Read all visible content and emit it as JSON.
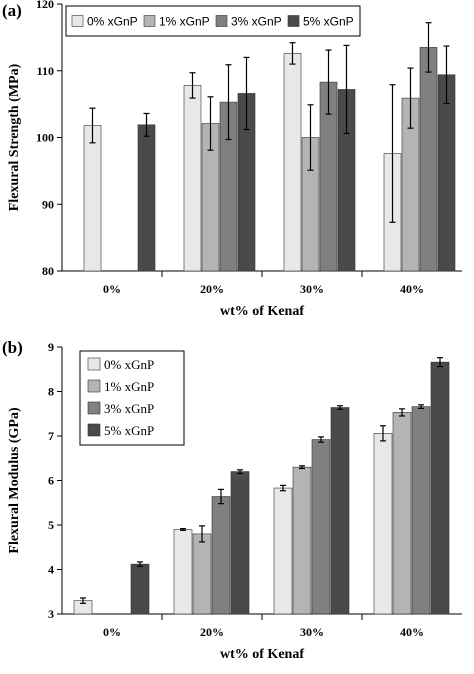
{
  "chart_data": [
    {
      "type": "bar",
      "panel_label": "(a)",
      "xlabel": "wt% of Kenaf",
      "ylabel": "Flexural Strength (MPa)",
      "ylim": [
        80,
        120
      ],
      "yticks": [
        "80",
        "90",
        "100",
        "110",
        "120"
      ],
      "categories": [
        "0%",
        "20%",
        "30%",
        "40%"
      ],
      "grid": false,
      "legend_position": "top",
      "series": [
        {
          "name": "0% xGnP",
          "color": "#e8e8e8",
          "values": [
            101.8,
            107.8,
            112.6,
            97.6
          ],
          "errors": [
            2.6,
            1.9,
            1.6,
            10.3
          ]
        },
        {
          "name": "1% xGnP",
          "color": "#b4b4b4",
          "values": [
            null,
            102.1,
            100.0,
            105.9
          ],
          "errors": [
            null,
            4.0,
            4.9,
            4.5
          ]
        },
        {
          "name": "3% xGnP",
          "color": "#808080",
          "values": [
            null,
            105.3,
            108.3,
            113.5
          ],
          "errors": [
            null,
            5.6,
            4.8,
            3.7
          ]
        },
        {
          "name": "5% xGnP",
          "color": "#4a4a4a",
          "values": [
            101.9,
            106.6,
            107.2,
            109.4
          ],
          "errors": [
            1.7,
            5.4,
            6.6,
            4.3
          ]
        }
      ]
    },
    {
      "type": "bar",
      "panel_label": "(b)",
      "xlabel": "wt% of Kenaf",
      "ylabel": "Flexural Modulus (GPa)",
      "ylim": [
        3,
        9
      ],
      "yticks": [
        "3",
        "4",
        "5",
        "6",
        "7",
        "8",
        "9"
      ],
      "categories": [
        "0%",
        "20%",
        "30%",
        "40%"
      ],
      "grid": false,
      "legend_position": "top-left",
      "series": [
        {
          "name": "0% xGnP",
          "color": "#e8e8e8",
          "values": [
            3.3,
            4.9,
            5.83,
            7.06
          ],
          "errors": [
            0.06,
            0.02,
            0.06,
            0.17
          ]
        },
        {
          "name": "1% xGnP",
          "color": "#b4b4b4",
          "values": [
            null,
            4.8,
            6.3,
            7.53
          ],
          "errors": [
            null,
            0.18,
            0.03,
            0.08
          ]
        },
        {
          "name": "3% xGnP",
          "color": "#808080",
          "values": [
            null,
            5.64,
            6.92,
            7.66
          ],
          "errors": [
            null,
            0.16,
            0.06,
            0.04
          ]
        },
        {
          "name": "5% xGnP",
          "color": "#4a4a4a",
          "values": [
            4.12,
            6.2,
            7.64,
            8.66
          ],
          "errors": [
            0.05,
            0.04,
            0.04,
            0.1
          ]
        }
      ]
    }
  ]
}
